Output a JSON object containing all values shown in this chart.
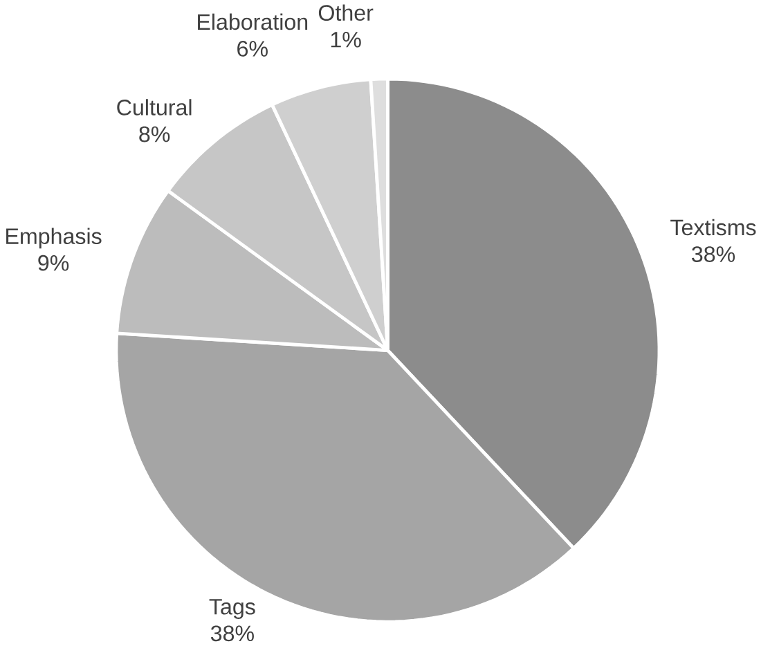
{
  "chart_data": {
    "type": "pie",
    "categories": [
      "Textisms",
      "Tags",
      "Emphasis",
      "Cultural",
      "Elaboration",
      "Other"
    ],
    "values": [
      38,
      38,
      9,
      8,
      6,
      1
    ],
    "value_labels": [
      "38%",
      "38%",
      "9%",
      "8%",
      "6%",
      "1%"
    ],
    "colors": [
      "#8c8c8c",
      "#a5a5a5",
      "#bcbcbc",
      "#c6c6c6",
      "#cfcfcf",
      "#dedede"
    ]
  }
}
